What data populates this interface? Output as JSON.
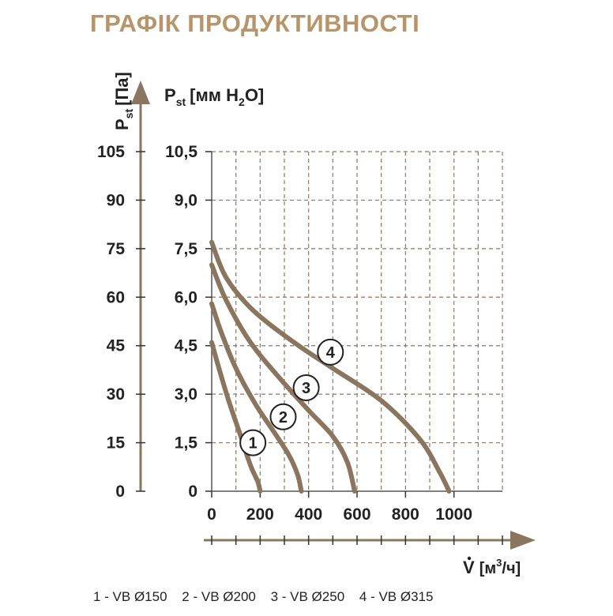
{
  "title": "ГРАФІК ПРОДУКТИВНОСТІ",
  "colors": {
    "title": "#b8946a",
    "curve": "#8a765e",
    "grid": "#8a7a66",
    "axis_arrow": "#8a765e",
    "text": "#222222"
  },
  "chart_data": {
    "type": "line",
    "y_left_label": {
      "main": "P",
      "sub": "st",
      "unit": "[Па]"
    },
    "y_right_label": {
      "main": "P",
      "sub": "st",
      "unit_prefix": "[мм H",
      "unit_sub": "2",
      "unit_suffix": "O]"
    },
    "x_label": {
      "main": "V",
      "unit_prefix": "[м",
      "unit_sup": "3",
      "unit_suffix": "/ч]"
    },
    "y_ticks_pa": [
      "105",
      "90",
      "75",
      "60",
      "45",
      "30",
      "15",
      "0"
    ],
    "y_ticks_mm": [
      "10,5",
      "9,0",
      "7,5",
      "6,0",
      "4,5",
      "3,0",
      "1,5",
      "0"
    ],
    "x_ticks": [
      "0",
      "200",
      "400",
      "600",
      "800",
      "1000"
    ],
    "xlim": [
      0,
      1200
    ],
    "ylim": [
      0,
      105
    ],
    "grid": true,
    "series": [
      {
        "name": "1",
        "points": [
          [
            0,
            46
          ],
          [
            30,
            38
          ],
          [
            70,
            28
          ],
          [
            120,
            17
          ],
          [
            160,
            8
          ],
          [
            190,
            3
          ],
          [
            200,
            0
          ]
        ]
      },
      {
        "name": "2",
        "points": [
          [
            0,
            58
          ],
          [
            40,
            49
          ],
          [
            100,
            38
          ],
          [
            180,
            27
          ],
          [
            260,
            18
          ],
          [
            320,
            11
          ],
          [
            355,
            5
          ],
          [
            370,
            0
          ]
        ]
      },
      {
        "name": "3",
        "points": [
          [
            0,
            70
          ],
          [
            60,
            59
          ],
          [
            160,
            46
          ],
          [
            280,
            35
          ],
          [
            400,
            25
          ],
          [
            500,
            17
          ],
          [
            560,
            9
          ],
          [
            590,
            0
          ]
        ]
      },
      {
        "name": "4",
        "points": [
          [
            0,
            77
          ],
          [
            60,
            66
          ],
          [
            170,
            56
          ],
          [
            340,
            46
          ],
          [
            500,
            38
          ],
          [
            700,
            28
          ],
          [
            860,
            16
          ],
          [
            940,
            6
          ],
          [
            980,
            0
          ]
        ]
      }
    ],
    "curve_labels": [
      {
        "name": "1",
        "x": 170,
        "y": 15
      },
      {
        "name": "2",
        "x": 295,
        "y": 23
      },
      {
        "name": "3",
        "x": 390,
        "y": 32
      },
      {
        "name": "4",
        "x": 490,
        "y": 43
      }
    ]
  },
  "legend": [
    "1 - VB Ø150",
    "2 - VB Ø200",
    "3 - VB Ø250",
    "4 - VB Ø315"
  ]
}
